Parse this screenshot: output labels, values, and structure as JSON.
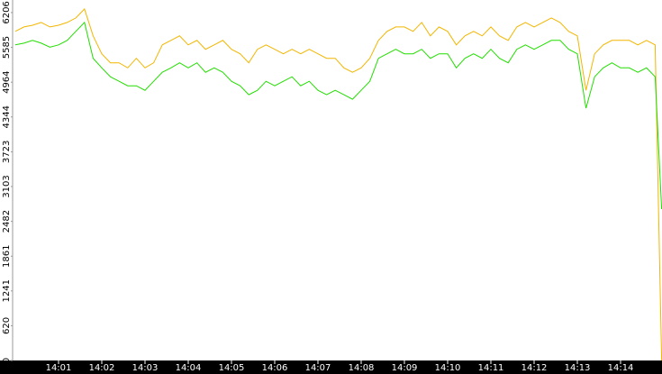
{
  "chart_data": {
    "type": "line",
    "x": [
      0,
      0.2,
      0.4,
      0.6,
      0.8,
      1,
      1.2,
      1.4,
      1.6,
      1.8,
      2,
      2.2,
      2.4,
      2.6,
      2.8,
      3,
      3.2,
      3.4,
      3.6,
      3.8,
      4,
      4.2,
      4.4,
      4.6,
      4.8,
      5,
      5.2,
      5.4,
      5.6,
      5.8,
      6,
      6.2,
      6.4,
      6.6,
      6.8,
      7,
      7.2,
      7.4,
      7.6,
      7.8,
      8,
      8.2,
      8.4,
      8.6,
      8.8,
      9,
      9.2,
      9.4,
      9.6,
      9.8,
      10,
      10.2,
      10.4,
      10.6,
      10.8,
      11,
      11.2,
      11.4,
      11.6,
      11.8,
      12,
      12.2,
      12.4,
      12.6,
      12.8,
      13,
      13.2,
      13.4,
      13.6,
      13.8,
      14,
      14.2,
      14.4,
      14.6,
      14.8,
      14.95
    ],
    "series": [
      {
        "color": "#f2b600",
        "values": [
          5870,
          5950,
          5980,
          6030,
          5950,
          5980,
          6030,
          6110,
          6270,
          5790,
          5470,
          5310,
          5310,
          5220,
          5390,
          5220,
          5310,
          5630,
          5710,
          5790,
          5630,
          5710,
          5550,
          5630,
          5710,
          5550,
          5470,
          5310,
          5550,
          5630,
          5550,
          5470,
          5550,
          5470,
          5550,
          5470,
          5390,
          5390,
          5220,
          5140,
          5220,
          5390,
          5710,
          5870,
          5950,
          5950,
          5870,
          6030,
          5790,
          5950,
          5870,
          5630,
          5790,
          5870,
          5790,
          5950,
          5790,
          5710,
          5950,
          6030,
          5950,
          6030,
          6110,
          6030,
          5870,
          5790,
          4820,
          5470,
          5630,
          5710,
          5710,
          5710,
          5630,
          5710,
          5630,
          0
        ]
      },
      {
        "color": "#22dd00",
        "values": [
          5630,
          5660,
          5710,
          5660,
          5590,
          5630,
          5710,
          5870,
          6030,
          5390,
          5220,
          5060,
          4980,
          4900,
          4900,
          4820,
          4980,
          5140,
          5220,
          5310,
          5220,
          5310,
          5140,
          5220,
          5140,
          4980,
          4900,
          4740,
          4820,
          4980,
          4900,
          4980,
          5060,
          4900,
          4980,
          4820,
          4740,
          4820,
          4740,
          4660,
          4820,
          4980,
          5390,
          5470,
          5550,
          5470,
          5470,
          5550,
          5390,
          5470,
          5470,
          5220,
          5390,
          5470,
          5390,
          5550,
          5390,
          5310,
          5550,
          5630,
          5550,
          5630,
          5710,
          5710,
          5550,
          5470,
          4500,
          5060,
          5220,
          5310,
          5220,
          5220,
          5140,
          5220,
          5060,
          2700
        ]
      }
    ],
    "xlim": [
      -0.0625,
      14.958
    ],
    "xticks": [
      {
        "value": 1,
        "label": "14:01"
      },
      {
        "value": 2,
        "label": "14:02"
      },
      {
        "value": 3,
        "label": "14:03"
      },
      {
        "value": 4,
        "label": "14:04"
      },
      {
        "value": 5,
        "label": "14:05"
      },
      {
        "value": 6,
        "label": "14:06"
      },
      {
        "value": 7,
        "label": "14:07"
      },
      {
        "value": 8,
        "label": "14:08"
      },
      {
        "value": 9,
        "label": "14:09"
      },
      {
        "value": 10,
        "label": "14:10"
      },
      {
        "value": 11,
        "label": "14:11"
      },
      {
        "value": 12,
        "label": "14:12"
      },
      {
        "value": 13,
        "label": "14:13"
      },
      {
        "value": 14,
        "label": "14:14"
      }
    ],
    "ylim": [
      0,
      6430
    ],
    "yticks": [
      0,
      620,
      1241,
      1861,
      2482,
      3103,
      3723,
      4344,
      4964,
      5585,
      6206
    ]
  }
}
